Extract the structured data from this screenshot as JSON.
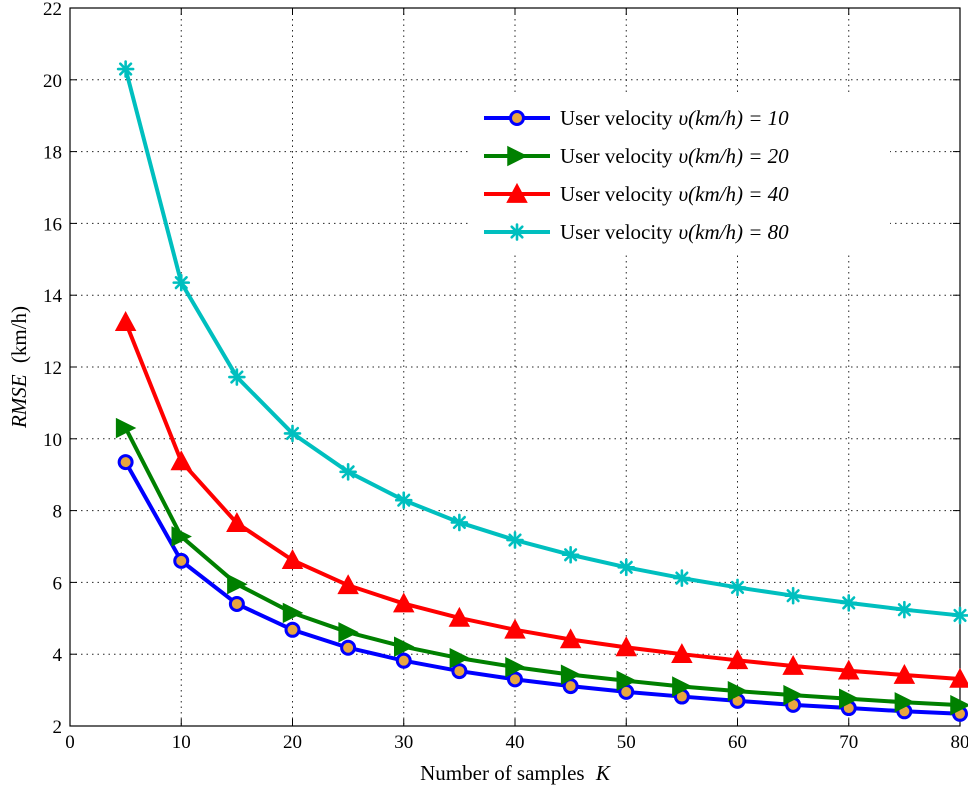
{
  "chart_data": {
    "type": "line",
    "title": "",
    "xlabel": "Number of samples",
    "xlabel_var": "K",
    "ylabel": "RMSE",
    "ylabel_unit": "(km/h)",
    "xlim": [
      0,
      80
    ],
    "ylim": [
      2,
      22
    ],
    "xticks": [
      0,
      10,
      20,
      30,
      40,
      50,
      60,
      70,
      80
    ],
    "yticks": [
      2,
      4,
      6,
      8,
      10,
      12,
      14,
      16,
      18,
      20,
      22
    ],
    "grid": true,
    "legend_position": "top-right",
    "x": [
      5,
      10,
      15,
      20,
      25,
      30,
      35,
      40,
      45,
      50,
      55,
      60,
      65,
      70,
      75,
      80
    ],
    "series": [
      {
        "name_prefix": "User velocity",
        "name_var": "υ(km/h) = 10",
        "color": "#0000ff",
        "marker": "circle",
        "marker_fill": "#e8a640",
        "values": [
          9.35,
          6.6,
          5.4,
          4.68,
          4.18,
          3.82,
          3.53,
          3.3,
          3.11,
          2.95,
          2.82,
          2.7,
          2.59,
          2.5,
          2.41,
          2.34
        ]
      },
      {
        "name_prefix": "User velocity",
        "name_var": "υ(km/h) = 20",
        "color": "#008000",
        "marker": "triangle-right",
        "marker_fill": "#008000",
        "values": [
          10.3,
          7.28,
          5.95,
          5.15,
          4.61,
          4.21,
          3.89,
          3.64,
          3.43,
          3.26,
          3.1,
          2.97,
          2.86,
          2.76,
          2.66,
          2.58
        ]
      },
      {
        "name_prefix": "User velocity",
        "name_var": "υ(km/h) = 40",
        "color": "#ff0000",
        "marker": "triangle-up",
        "marker_fill": "#ff0000",
        "values": [
          13.25,
          9.37,
          7.65,
          6.62,
          5.92,
          5.41,
          5.01,
          4.68,
          4.41,
          4.19,
          4.0,
          3.83,
          3.67,
          3.54,
          3.42,
          3.31
        ]
      },
      {
        "name_prefix": "User velocity",
        "name_var": "υ(km/h) = 80",
        "color": "#00bfbf",
        "marker": "asterisk",
        "marker_fill": "#00bfbf",
        "values": [
          20.3,
          14.35,
          11.72,
          10.15,
          9.08,
          8.29,
          7.67,
          7.18,
          6.77,
          6.42,
          6.12,
          5.86,
          5.63,
          5.43,
          5.24,
          5.08
        ]
      }
    ]
  }
}
